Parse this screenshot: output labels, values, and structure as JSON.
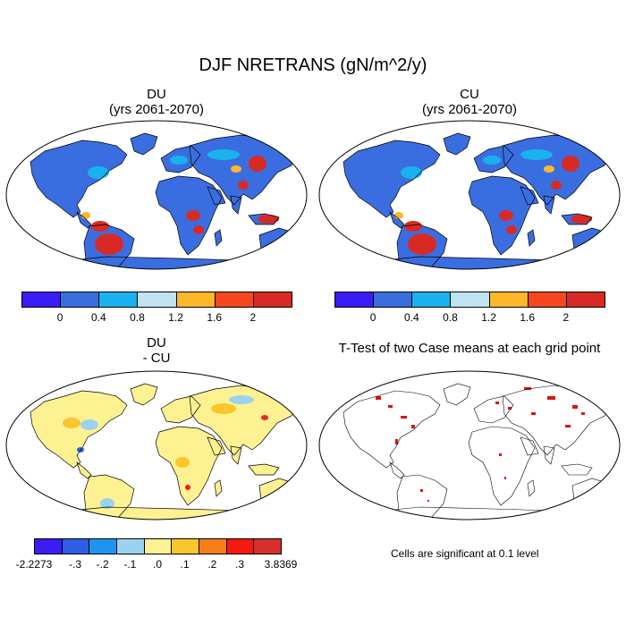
{
  "figure": {
    "title": "DJF NRETRANS (gN/m^2/y)",
    "panels": [
      {
        "id": "du",
        "title_line1": "DU",
        "title_line2": "(yrs 2061-2070)"
      },
      {
        "id": "cu",
        "title_line1": "CU",
        "title_line2": "(yrs 2061-2070)"
      },
      {
        "id": "diff",
        "title_line1": "DU",
        "title_line2": "- CU"
      },
      {
        "id": "ttest",
        "title_line1": "T-Test of two Case means at each grid point",
        "title_line2": ""
      }
    ],
    "colorbar_top": {
      "colors": [
        "#3a1cf5",
        "#3a6ee0",
        "#19b2ee",
        "#bfe3f2",
        "#fcb72b",
        "#f7471e",
        "#d82a24"
      ],
      "tick_labels": [
        "0",
        "0.4",
        "0.8",
        "1.2",
        "1.6",
        "2"
      ]
    },
    "colorbar_diff": {
      "colors": [
        "#3b1cf5",
        "#2e5ee6",
        "#1d95ef",
        "#9ad3ef",
        "#fdf192",
        "#fbc62c",
        "#f87d17",
        "#f41a11",
        "#d82f2d"
      ],
      "tick_labels": [
        "-2.2273",
        "-.3",
        "-.2",
        "-.1",
        ".0",
        ".1",
        ".2",
        ".3",
        "3.8369"
      ]
    },
    "significance_note": "Cells are significant at 0.1 level",
    "colors": {
      "land_base": "#3a6ee0",
      "diff_land": "#fdf192",
      "significant": "#e01010",
      "ocean": "#ffffff",
      "outline": "#000000"
    }
  }
}
